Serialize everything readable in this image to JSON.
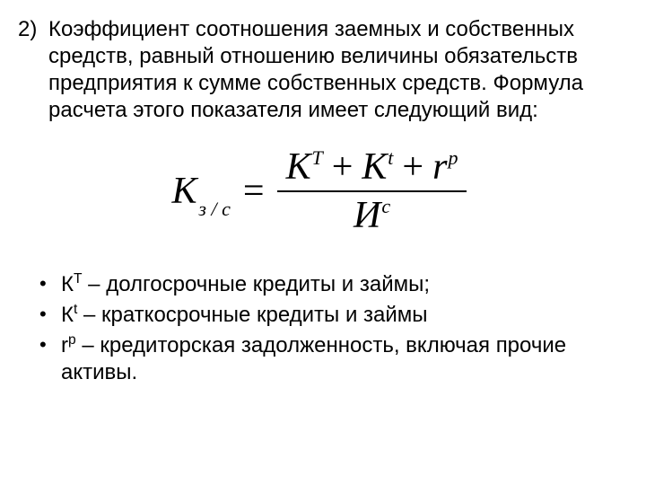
{
  "colors": {
    "background": "#ffffff",
    "text": "#000000",
    "formula_bar": "#000000"
  },
  "typography": {
    "body_font": "Arial",
    "body_size_pt": 18,
    "formula_font": "Times New Roman",
    "formula_size_pt": 32,
    "formula_style": "italic"
  },
  "paragraph": {
    "marker": "2)",
    "text": "Коэффициент соотношения заемных и собственных средств, равный отношению величины обязательств предприятия к сумме собственных средств. Формула расчета этого показателя имеет следующий вид:"
  },
  "formula": {
    "lhs_base": "К",
    "lhs_sub": "з / с",
    "equals": "=",
    "numerator": {
      "t1_base": "К",
      "t1_sup": "T",
      "plus": "+",
      "t2_base": "К",
      "t2_sup": "t",
      "t3_base": "r",
      "t3_sup": "p"
    },
    "denominator": {
      "base": "И",
      "sup": "с"
    }
  },
  "bullets": [
    {
      "sym_base": "К",
      "sym_sup": "T",
      "text": " – долгосрочные кредиты и займы;"
    },
    {
      "sym_base": "К",
      "sym_sup": "t",
      "text": " – краткосрочные кредиты и займы"
    },
    {
      "sym_base": "r",
      "sym_sup": "p",
      "text": " – кредиторская задолженность, включая прочие активы."
    }
  ]
}
